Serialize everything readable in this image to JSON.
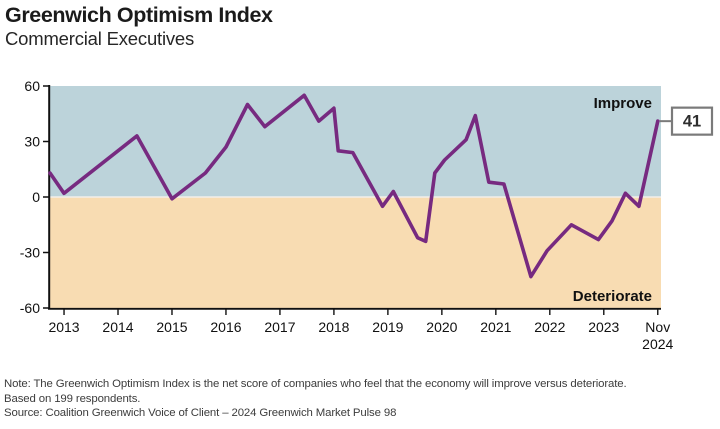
{
  "header": {
    "title": "Greenwich Optimism Index",
    "subtitle": "Commercial Executives"
  },
  "chart_data": {
    "type": "line",
    "title": "Greenwich Optimism Index",
    "subtitle": "Commercial Executives",
    "xlabel": "",
    "ylabel": "",
    "ylim": [
      -60,
      60
    ],
    "y_ticks": [
      60,
      30,
      0,
      -30,
      -60
    ],
    "xlim": [
      2012.74,
      2024.06
    ],
    "x_ticks": [
      {
        "pos": 2013,
        "label": "2013"
      },
      {
        "pos": 2014,
        "label": "2014"
      },
      {
        "pos": 2015,
        "label": "2015"
      },
      {
        "pos": 2016,
        "label": "2016"
      },
      {
        "pos": 2017,
        "label": "2017"
      },
      {
        "pos": 2018,
        "label": "2018"
      },
      {
        "pos": 2019,
        "label": "2019"
      },
      {
        "pos": 2020,
        "label": "2020"
      },
      {
        "pos": 2021,
        "label": "2021"
      },
      {
        "pos": 2022,
        "label": "2022"
      },
      {
        "pos": 2023,
        "label": "2023"
      },
      {
        "pos": 2024,
        "label": "Nov|2024"
      }
    ],
    "grid": false,
    "legend": "none",
    "regions": [
      {
        "label": "Improve",
        "range": [
          0,
          60
        ],
        "color": "#bcd3da"
      },
      {
        "label": "Deteriorate",
        "range": [
          -60,
          0
        ],
        "color": "#f8dcb2"
      }
    ],
    "series": [
      {
        "name": "Greenwich Optimism Index (net score)",
        "color": "#772a80",
        "points": [
          [
            2012.74,
            13
          ],
          [
            2013.0,
            2
          ],
          [
            2014.35,
            33
          ],
          [
            2015.0,
            -1
          ],
          [
            2015.62,
            13
          ],
          [
            2016.0,
            27
          ],
          [
            2016.4,
            50
          ],
          [
            2016.72,
            38
          ],
          [
            2017.45,
            55
          ],
          [
            2017.72,
            41
          ],
          [
            2018.0,
            48
          ],
          [
            2018.08,
            25
          ],
          [
            2018.35,
            24
          ],
          [
            2018.9,
            -5
          ],
          [
            2019.1,
            3
          ],
          [
            2019.55,
            -22
          ],
          [
            2019.7,
            -24
          ],
          [
            2019.87,
            13
          ],
          [
            2020.05,
            20
          ],
          [
            2020.45,
            31
          ],
          [
            2020.62,
            44
          ],
          [
            2020.87,
            8
          ],
          [
            2021.15,
            7
          ],
          [
            2021.65,
            -43
          ],
          [
            2021.95,
            -29
          ],
          [
            2022.4,
            -15
          ],
          [
            2022.9,
            -23
          ],
          [
            2023.15,
            -13
          ],
          [
            2023.4,
            2
          ],
          [
            2023.65,
            -5
          ],
          [
            2024.0,
            41
          ]
        ]
      }
    ],
    "end_annotation": {
      "value": 41,
      "text": "41"
    }
  },
  "labels": {
    "improve": "Improve",
    "deteriorate": "Deteriorate",
    "end_value": "41"
  },
  "footer": {
    "note_line1": "Note: The Greenwich Optimism Index is the net score of companies who feel that the economy will improve versus deteriorate.",
    "note_line2": "Based on 199 respondents.",
    "source_line": "Source: Coalition Greenwich Voice of Client – 2024 Greenwich Market Pulse 98"
  },
  "colors": {
    "line": "#772a80",
    "improve_band": "#bcd3da",
    "deteriorate_band": "#f8dcb2",
    "callout_border": "#7a7a7a",
    "axis": "#111111"
  }
}
